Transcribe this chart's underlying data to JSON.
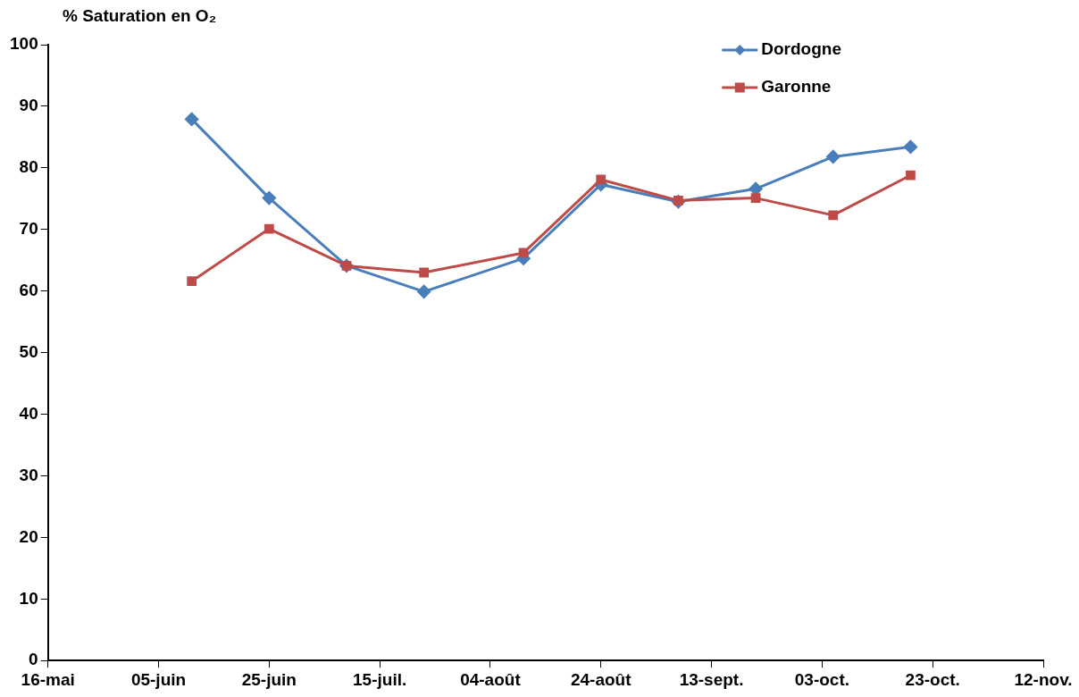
{
  "chart_data": {
    "type": "line",
    "ylabel": "% Saturation en O₂",
    "x": [
      "--06-11",
      "--06-25",
      "--07-09",
      "--07-23",
      "--08-10",
      "--08-24",
      "--09-07",
      "--09-21",
      "--10-05",
      "--10-19"
    ],
    "series": [
      {
        "name": "Dordogne",
        "color": "#4a7ebb",
        "marker": "diamond",
        "values": [
          87.9,
          75.1,
          64.1,
          59.9,
          65.3,
          77.3,
          74.5,
          76.6,
          81.8,
          83.4
        ]
      },
      {
        "name": "Garonne",
        "color": "#be4b48",
        "marker": "square",
        "values": [
          61.6,
          70.1,
          64.1,
          63.0,
          66.2,
          78.1,
          74.7,
          75.1,
          72.3,
          78.8
        ]
      }
    ],
    "xlim": [
      "--05-16",
      "--11-12"
    ],
    "xticks": [
      {
        "value": "--05-16",
        "label": "16-mai"
      },
      {
        "value": "--06-05",
        "label": "05-juin"
      },
      {
        "value": "--06-25",
        "label": "25-juin"
      },
      {
        "value": "--07-15",
        "label": "15-juil."
      },
      {
        "value": "--08-04",
        "label": "04-août"
      },
      {
        "value": "--08-24",
        "label": "24-août"
      },
      {
        "value": "--09-13",
        "label": "13-sept."
      },
      {
        "value": "--10-03",
        "label": "03-oct."
      },
      {
        "value": "--10-23",
        "label": "23-oct."
      },
      {
        "value": "--11-12",
        "label": "12-nov."
      }
    ],
    "ylim": [
      0,
      100
    ],
    "yticks": [
      0,
      10,
      20,
      30,
      40,
      50,
      60,
      70,
      80,
      90,
      100
    ],
    "grid": false,
    "legend": "top right",
    "line_style": "solid"
  }
}
